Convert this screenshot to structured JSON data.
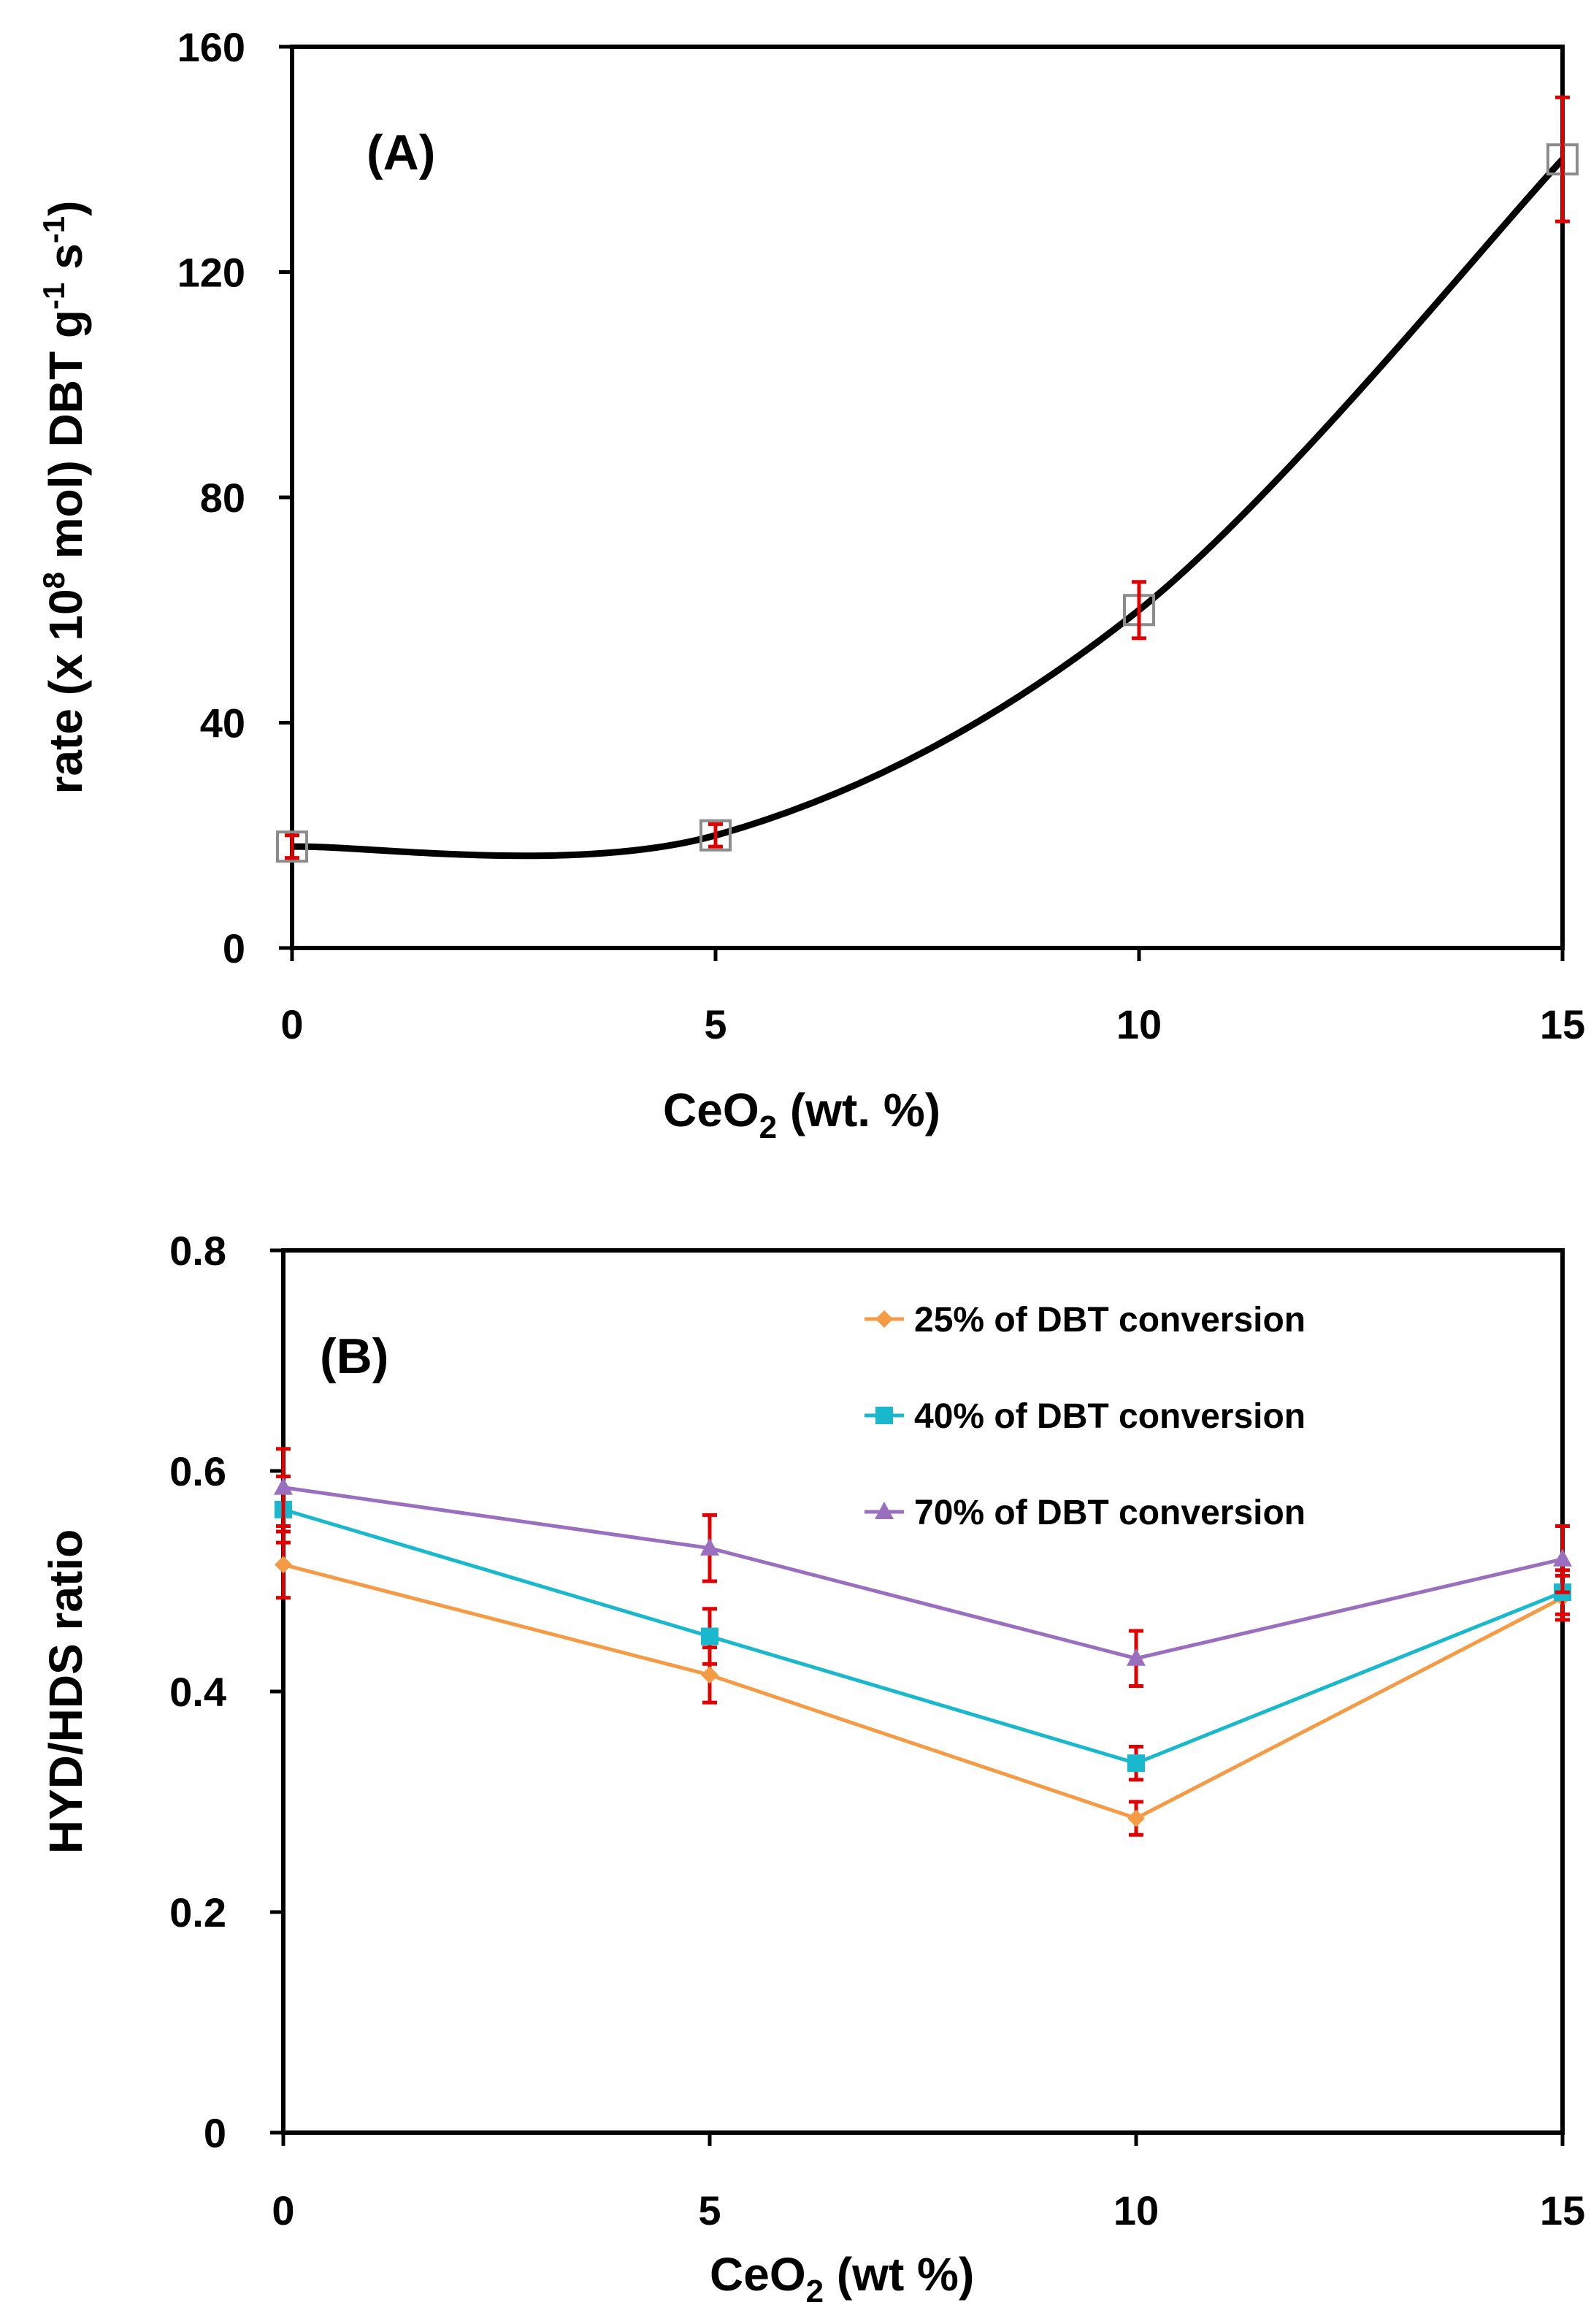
{
  "chart_data": [
    {
      "type": "line",
      "panel_label": "(A)",
      "xlabel_main": "CeO",
      "xlabel_sub": "2",
      "xlabel_rest": " (wt. %)",
      "ylabel_parts": [
        "rate (x 10",
        "8",
        " mol) DBT g",
        "-1",
        " s",
        "-1",
        ")"
      ],
      "xlim": [
        0,
        15
      ],
      "ylim": [
        0,
        160
      ],
      "x_ticks": [
        0,
        5,
        10,
        15
      ],
      "x_tick_labels": [
        "0",
        "5",
        "10",
        "15"
      ],
      "y_ticks": [
        0,
        40,
        80,
        120,
        160
      ],
      "y_tick_labels": [
        "0",
        "40",
        "80",
        "120",
        "160"
      ],
      "curve_color": "#000000",
      "error_color": "#e00000",
      "marker": "open-square",
      "series": [
        {
          "name": "rate",
          "x": [
            0,
            5,
            10,
            15
          ],
          "values": [
            18,
            20,
            60,
            140
          ],
          "errors": [
            2,
            2,
            5,
            11
          ]
        }
      ]
    },
    {
      "type": "line",
      "panel_label": "(B)",
      "xlabel_main": "CeO",
      "xlabel_sub": "2",
      "xlabel_rest": " (wt %)",
      "ylabel": "HYD/HDS  ratio",
      "xlim": [
        0,
        15
      ],
      "ylim": [
        0,
        0.8
      ],
      "x_ticks": [
        0,
        5,
        10,
        15
      ],
      "x_tick_labels": [
        "0",
        "5",
        "10",
        "15"
      ],
      "y_ticks": [
        0,
        0.2,
        0.4,
        0.6,
        0.8
      ],
      "y_tick_labels": [
        "0",
        "0.2",
        "0.4",
        "0.6",
        "0.8"
      ],
      "error_color": "#e00000",
      "legend_position": "top-right",
      "series": [
        {
          "name": "25% of DBT conversion",
          "color": "#f59a45",
          "marker": "diamond",
          "x": [
            0,
            5,
            10,
            15
          ],
          "values": [
            0.515,
            0.415,
            0.285,
            0.485
          ],
          "errors": [
            0.03,
            0.025,
            0.015,
            0.02
          ]
        },
        {
          "name": "40% of DBT conversion",
          "color": "#1ab8cc",
          "marker": "square",
          "x": [
            0,
            5,
            10,
            15
          ],
          "values": [
            0.565,
            0.45,
            0.335,
            0.49
          ],
          "errors": [
            0.03,
            0.025,
            0.015,
            0.02
          ]
        },
        {
          "name": "70% of DBT conversion",
          "color": "#9a6fbf",
          "marker": "triangle",
          "x": [
            0,
            5,
            10,
            15
          ],
          "values": [
            0.585,
            0.53,
            0.43,
            0.52
          ],
          "errors": [
            0.035,
            0.03,
            0.025,
            0.03
          ]
        }
      ]
    }
  ]
}
